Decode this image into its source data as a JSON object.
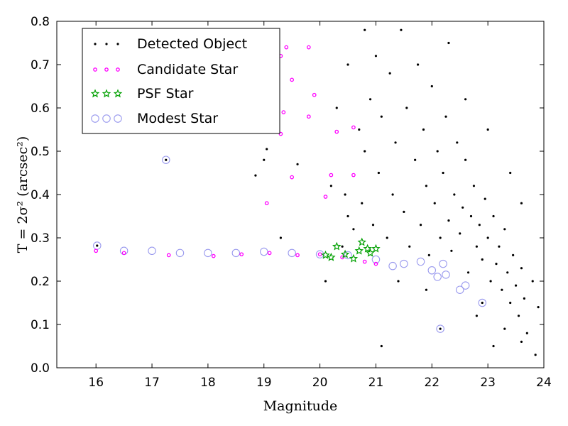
{
  "chart_data": {
    "type": "scatter",
    "xlabel": "Magnitude",
    "ylabel": "T = 2σ² (arcsec²)",
    "xlim": [
      15.3,
      24
    ],
    "ylim": [
      0.0,
      0.8
    ],
    "x_ticks": [
      "16",
      "17",
      "18",
      "19",
      "20",
      "21",
      "22",
      "23",
      "24"
    ],
    "y_ticks": [
      "0.0",
      "0.1",
      "0.2",
      "0.3",
      "0.4",
      "0.5",
      "0.6",
      "0.7",
      "0.8"
    ],
    "legend_position": "upper-left",
    "grid": false,
    "series": [
      {
        "name": "Detected Object",
        "marker": "dot",
        "color": "#000000",
        "points": [
          [
            16.02,
            0.282
          ],
          [
            17.25,
            0.48
          ],
          [
            22.15,
            0.09
          ],
          [
            22.9,
            0.15
          ],
          [
            21.1,
            0.05
          ],
          [
            18.85,
            0.444
          ],
          [
            19.0,
            0.48
          ],
          [
            19.05,
            0.505
          ],
          [
            19.3,
            0.3
          ],
          [
            19.6,
            0.47
          ],
          [
            20.2,
            0.42
          ],
          [
            20.45,
            0.4
          ],
          [
            20.5,
            0.35
          ],
          [
            20.6,
            0.32
          ],
          [
            20.7,
            0.55
          ],
          [
            20.75,
            0.38
          ],
          [
            20.8,
            0.5
          ],
          [
            20.9,
            0.62
          ],
          [
            20.95,
            0.33
          ],
          [
            21.0,
            0.72
          ],
          [
            21.05,
            0.45
          ],
          [
            21.1,
            0.58
          ],
          [
            21.2,
            0.3
          ],
          [
            21.25,
            0.68
          ],
          [
            21.3,
            0.4
          ],
          [
            21.35,
            0.52
          ],
          [
            21.45,
            0.78
          ],
          [
            21.5,
            0.36
          ],
          [
            21.55,
            0.6
          ],
          [
            21.6,
            0.28
          ],
          [
            21.7,
            0.48
          ],
          [
            21.75,
            0.7
          ],
          [
            21.8,
            0.33
          ],
          [
            21.85,
            0.55
          ],
          [
            21.9,
            0.42
          ],
          [
            21.95,
            0.26
          ],
          [
            22.0,
            0.65
          ],
          [
            22.05,
            0.38
          ],
          [
            22.1,
            0.5
          ],
          [
            22.15,
            0.3
          ],
          [
            22.2,
            0.45
          ],
          [
            22.25,
            0.58
          ],
          [
            22.3,
            0.34
          ],
          [
            22.35,
            0.27
          ],
          [
            22.4,
            0.4
          ],
          [
            22.45,
            0.52
          ],
          [
            22.5,
            0.31
          ],
          [
            22.55,
            0.37
          ],
          [
            22.6,
            0.48
          ],
          [
            22.65,
            0.22
          ],
          [
            22.7,
            0.35
          ],
          [
            22.75,
            0.42
          ],
          [
            22.8,
            0.28
          ],
          [
            22.85,
            0.33
          ],
          [
            22.9,
            0.25
          ],
          [
            22.95,
            0.39
          ],
          [
            23.0,
            0.3
          ],
          [
            23.05,
            0.2
          ],
          [
            23.1,
            0.35
          ],
          [
            23.15,
            0.24
          ],
          [
            23.2,
            0.28
          ],
          [
            23.25,
            0.18
          ],
          [
            23.3,
            0.32
          ],
          [
            23.35,
            0.22
          ],
          [
            23.4,
            0.15
          ],
          [
            23.45,
            0.26
          ],
          [
            23.5,
            0.19
          ],
          [
            23.55,
            0.12
          ],
          [
            23.6,
            0.23
          ],
          [
            23.65,
            0.16
          ],
          [
            23.7,
            0.08
          ],
          [
            23.8,
            0.2
          ],
          [
            23.9,
            0.14
          ],
          [
            23.85,
            0.03
          ],
          [
            23.6,
            0.06
          ],
          [
            23.3,
            0.09
          ],
          [
            23.1,
            0.05
          ],
          [
            22.8,
            0.12
          ],
          [
            20.3,
            0.6
          ],
          [
            20.5,
            0.7
          ],
          [
            20.1,
            0.2
          ],
          [
            20.4,
            0.28
          ],
          [
            20.8,
            0.78
          ],
          [
            21.4,
            0.2
          ],
          [
            21.9,
            0.18
          ],
          [
            22.3,
            0.75
          ],
          [
            22.6,
            0.62
          ],
          [
            23.0,
            0.55
          ],
          [
            23.4,
            0.45
          ],
          [
            23.6,
            0.38
          ]
        ]
      },
      {
        "name": "Candidate Star",
        "marker": "small-circle",
        "color": "#ff00ff",
        "points": [
          [
            16.0,
            0.27
          ],
          [
            16.5,
            0.265
          ],
          [
            17.3,
            0.26
          ],
          [
            18.1,
            0.258
          ],
          [
            18.6,
            0.262
          ],
          [
            19.1,
            0.265
          ],
          [
            19.6,
            0.26
          ],
          [
            20.0,
            0.262
          ],
          [
            20.4,
            0.255
          ],
          [
            20.8,
            0.245
          ],
          [
            21.0,
            0.24
          ],
          [
            19.05,
            0.38
          ],
          [
            19.3,
            0.72
          ],
          [
            19.4,
            0.74
          ],
          [
            19.5,
            0.665
          ],
          [
            19.35,
            0.59
          ],
          [
            19.3,
            0.54
          ],
          [
            19.5,
            0.44
          ],
          [
            19.8,
            0.58
          ],
          [
            19.8,
            0.74
          ],
          [
            19.9,
            0.63
          ],
          [
            20.1,
            0.395
          ],
          [
            20.2,
            0.445
          ],
          [
            20.3,
            0.545
          ],
          [
            20.6,
            0.555
          ],
          [
            20.6,
            0.445
          ]
        ]
      },
      {
        "name": "PSF Star",
        "marker": "star",
        "color": "#00a000",
        "points": [
          [
            20.1,
            0.26
          ],
          [
            20.2,
            0.255
          ],
          [
            20.3,
            0.28
          ],
          [
            20.7,
            0.27
          ],
          [
            20.75,
            0.29
          ],
          [
            20.85,
            0.275
          ],
          [
            21.0,
            0.275
          ],
          [
            20.6,
            0.252
          ],
          [
            20.45,
            0.262
          ],
          [
            20.9,
            0.265
          ]
        ]
      },
      {
        "name": "Modest Star",
        "marker": "open-circle",
        "color": "#9999ee",
        "points": [
          [
            16.02,
            0.282
          ],
          [
            17.25,
            0.48
          ],
          [
            22.15,
            0.09
          ],
          [
            22.9,
            0.15
          ],
          [
            16.5,
            0.27
          ],
          [
            17.0,
            0.27
          ],
          [
            17.5,
            0.265
          ],
          [
            18.0,
            0.265
          ],
          [
            18.5,
            0.265
          ],
          [
            19.0,
            0.268
          ],
          [
            19.5,
            0.265
          ],
          [
            20.0,
            0.262
          ],
          [
            20.5,
            0.26
          ],
          [
            21.0,
            0.25
          ],
          [
            21.3,
            0.235
          ],
          [
            21.5,
            0.24
          ],
          [
            22.0,
            0.225
          ],
          [
            22.1,
            0.21
          ],
          [
            22.25,
            0.215
          ],
          [
            22.5,
            0.18
          ],
          [
            22.6,
            0.19
          ],
          [
            21.8,
            0.245
          ],
          [
            22.2,
            0.24
          ]
        ]
      }
    ]
  }
}
